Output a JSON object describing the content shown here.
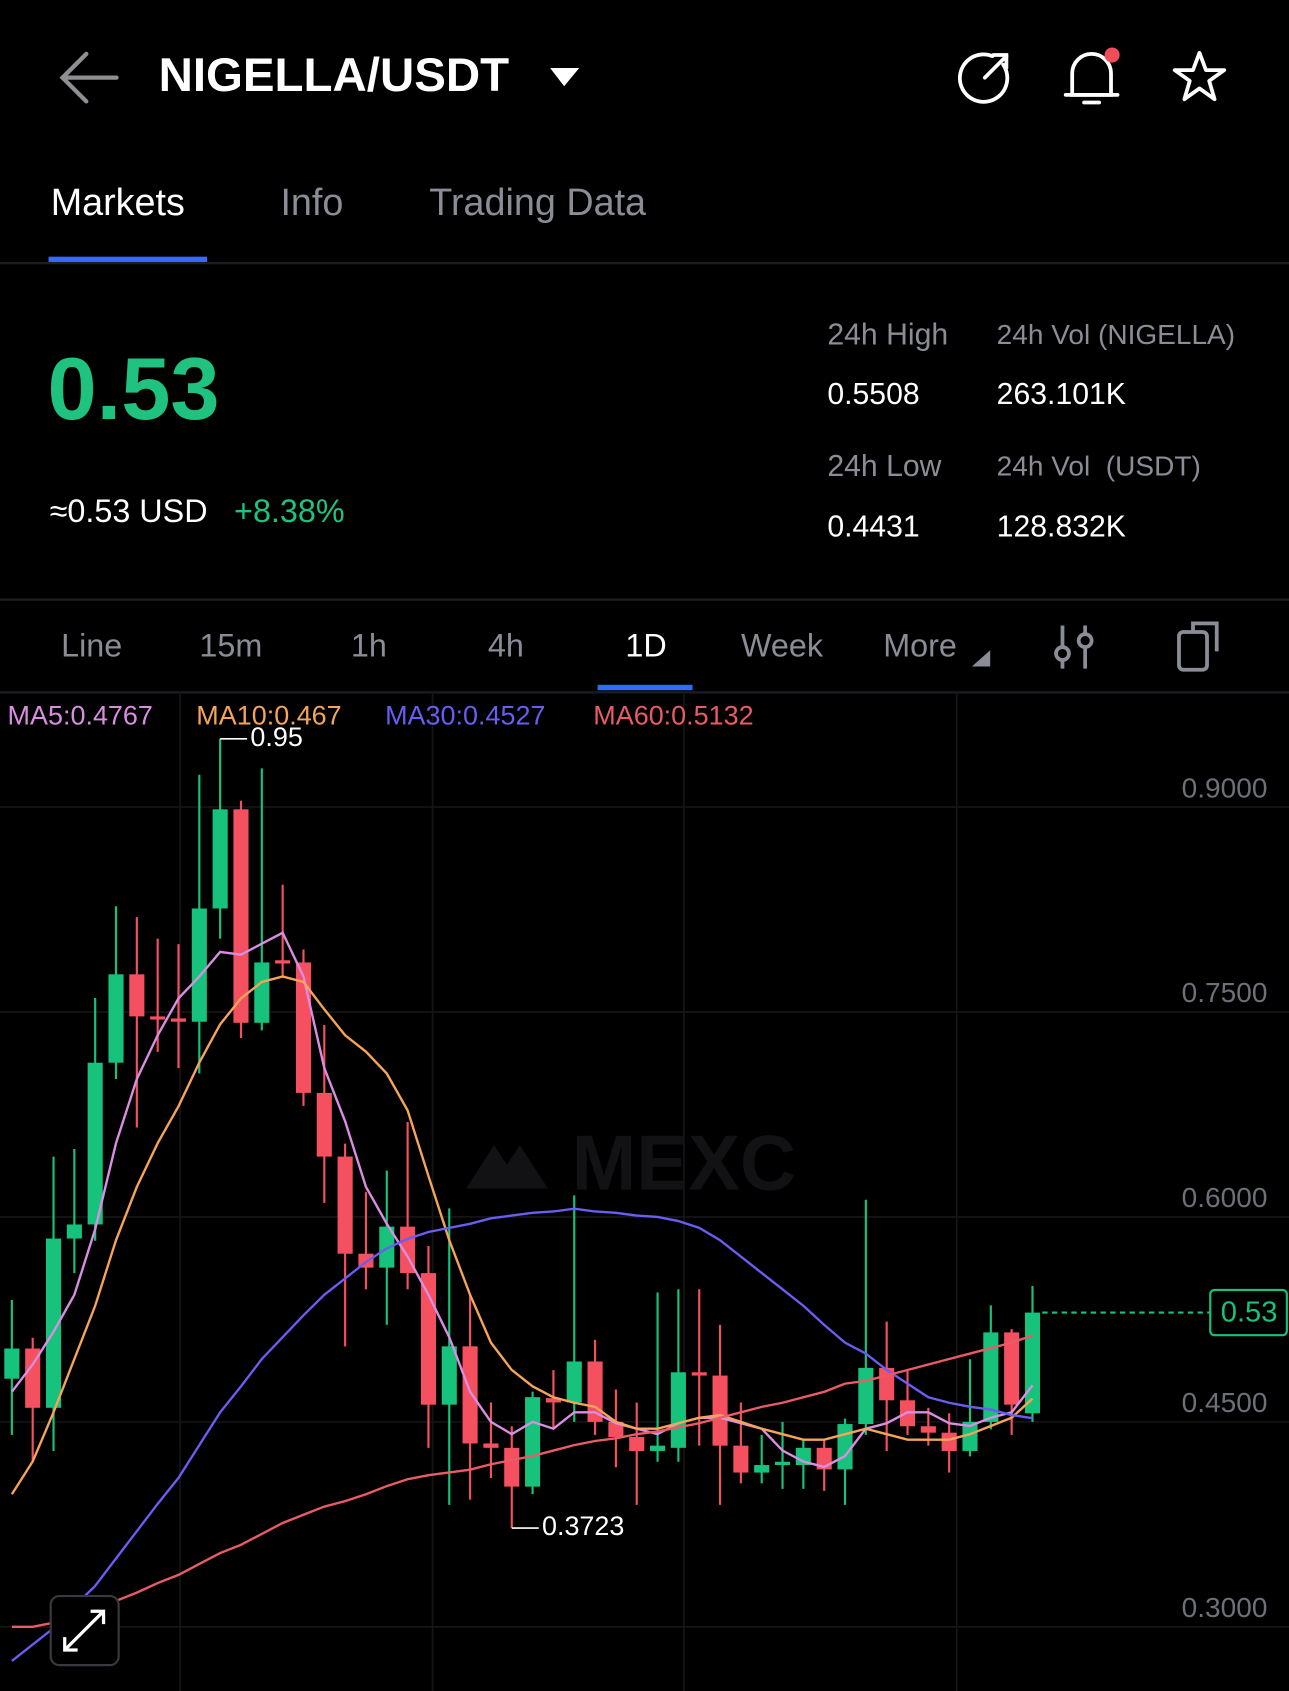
{
  "header": {
    "title": "NIGELLA/USDT",
    "tabs": [
      "Markets",
      "Info",
      "Trading Data"
    ]
  },
  "ticker": {
    "price": "0.53",
    "usd": "≈0.53 USD",
    "change": "+8.38%",
    "stats": [
      {
        "label": "24h High",
        "value": "0.5508"
      },
      {
        "label": "24h Vol (NIGELLA)",
        "value": "263.101K"
      },
      {
        "label": "24h Low",
        "value": "0.4431"
      },
      {
        "label": "24h Vol  (USDT)",
        "value": "128.832K"
      }
    ]
  },
  "intervals": [
    "Line",
    "15m",
    "1h",
    "4h",
    "1D",
    "Week",
    "More"
  ],
  "chart_data": {
    "type": "candlestick",
    "watermark": "MEXC",
    "up_color": "#16c27c",
    "down_color": "#f4505f",
    "ylim": [
      0.253,
      0.984
    ],
    "yticks": [
      {
        "value": 0.9,
        "label": "0.9000"
      },
      {
        "value": 0.75,
        "label": "0.7500"
      },
      {
        "value": 0.6,
        "label": "0.6000"
      },
      {
        "value": 0.45,
        "label": "0.4500"
      },
      {
        "value": 0.3,
        "label": "0.3000"
      }
    ],
    "grid": true,
    "candles": [
      {
        "open": 0.4816,
        "high": 0.5392,
        "low": 0.4405,
        "close": 0.5037
      },
      {
        "open": 0.5037,
        "high": 0.5116,
        "low": 0.4208,
        "close": 0.4603
      },
      {
        "open": 0.4603,
        "high": 0.6442,
        "low": 0.4287,
        "close": 0.5842
      },
      {
        "open": 0.5842,
        "high": 0.6497,
        "low": 0.5589,
        "close": 0.5945
      },
      {
        "open": 0.5945,
        "high": 0.7603,
        "low": 0.5826,
        "close": 0.7129
      },
      {
        "open": 0.7129,
        "high": 0.8274,
        "low": 0.701,
        "close": 0.7776
      },
      {
        "open": 0.7776,
        "high": 0.8195,
        "low": 0.6655,
        "close": 0.7468
      },
      {
        "open": 0.7468,
        "high": 0.8037,
        "low": 0.7208,
        "close": 0.7445
      },
      {
        "open": 0.7453,
        "high": 0.7997,
        "low": 0.7089,
        "close": 0.7429
      },
      {
        "open": 0.7429,
        "high": 0.9237,
        "low": 0.705,
        "close": 0.8258
      },
      {
        "open": 0.8258,
        "high": 0.95,
        "low": 0.8037,
        "close": 0.8984
      },
      {
        "open": 0.8984,
        "high": 0.9047,
        "low": 0.731,
        "close": 0.7421
      },
      {
        "open": 0.7421,
        "high": 0.9284,
        "low": 0.7366,
        "close": 0.7863
      },
      {
        "open": 0.7879,
        "high": 0.8432,
        "low": 0.776,
        "close": 0.7855
      },
      {
        "open": 0.7863,
        "high": 0.7958,
        "low": 0.6813,
        "close": 0.6908
      },
      {
        "open": 0.6908,
        "high": 0.7405,
        "low": 0.6103,
        "close": 0.6442
      },
      {
        "open": 0.6442,
        "high": 0.6537,
        "low": 0.5053,
        "close": 0.5731
      },
      {
        "open": 0.5731,
        "high": 0.6182,
        "low": 0.5471,
        "close": 0.5629
      },
      {
        "open": 0.5629,
        "high": 0.6339,
        "low": 0.521,
        "close": 0.5929
      },
      {
        "open": 0.5929,
        "high": 0.6695,
        "low": 0.5471,
        "close": 0.5589
      },
      {
        "open": 0.5589,
        "high": 0.5787,
        "low": 0.431,
        "close": 0.4626
      },
      {
        "open": 0.4626,
        "high": 0.6063,
        "low": 0.3892,
        "close": 0.5053
      },
      {
        "open": 0.5053,
        "high": 0.5431,
        "low": 0.3931,
        "close": 0.4342
      },
      {
        "open": 0.4342,
        "high": 0.4642,
        "low": 0.4089,
        "close": 0.431
      },
      {
        "open": 0.431,
        "high": 0.4468,
        "low": 0.3723,
        "close": 0.4026
      },
      {
        "open": 0.4026,
        "high": 0.4721,
        "low": 0.3971,
        "close": 0.4681
      },
      {
        "open": 0.4674,
        "high": 0.4879,
        "low": 0.4445,
        "close": 0.4642
      },
      {
        "open": 0.4642,
        "high": 0.6158,
        "low": 0.45,
        "close": 0.4942
      },
      {
        "open": 0.4942,
        "high": 0.51,
        "low": 0.4405,
        "close": 0.45
      },
      {
        "open": 0.45,
        "high": 0.4737,
        "low": 0.4168,
        "close": 0.4389
      },
      {
        "open": 0.4389,
        "high": 0.4642,
        "low": 0.3892,
        "close": 0.4287
      },
      {
        "open": 0.4287,
        "high": 0.5447,
        "low": 0.4208,
        "close": 0.4326
      },
      {
        "open": 0.431,
        "high": 0.5471,
        "low": 0.4208,
        "close": 0.4863
      },
      {
        "open": 0.4863,
        "high": 0.5471,
        "low": 0.4326,
        "close": 0.4839
      },
      {
        "open": 0.4839,
        "high": 0.521,
        "low": 0.3892,
        "close": 0.4326
      },
      {
        "open": 0.4326,
        "high": 0.4642,
        "low": 0.405,
        "close": 0.4129
      },
      {
        "open": 0.4129,
        "high": 0.4405,
        "low": 0.405,
        "close": 0.4184
      },
      {
        "open": 0.4184,
        "high": 0.45,
        "low": 0.401,
        "close": 0.4208
      },
      {
        "open": 0.4184,
        "high": 0.4366,
        "low": 0.401,
        "close": 0.431
      },
      {
        "open": 0.431,
        "high": 0.4366,
        "low": 0.3995,
        "close": 0.4152
      },
      {
        "open": 0.4152,
        "high": 0.4524,
        "low": 0.3892,
        "close": 0.4484
      },
      {
        "open": 0.4484,
        "high": 0.6126,
        "low": 0.4405,
        "close": 0.4895
      },
      {
        "open": 0.4895,
        "high": 0.5234,
        "low": 0.4287,
        "close": 0.4658
      },
      {
        "open": 0.4658,
        "high": 0.4879,
        "low": 0.4405,
        "close": 0.4468
      },
      {
        "open": 0.4468,
        "high": 0.4603,
        "low": 0.4326,
        "close": 0.4421
      },
      {
        "open": 0.4421,
        "high": 0.4563,
        "low": 0.4129,
        "close": 0.4287
      },
      {
        "open": 0.4287,
        "high": 0.4958,
        "low": 0.4247,
        "close": 0.45
      },
      {
        "open": 0.45,
        "high": 0.5353,
        "low": 0.4445,
        "close": 0.5155
      },
      {
        "open": 0.5155,
        "high": 0.5179,
        "low": 0.4405,
        "close": 0.4626
      },
      {
        "open": 0.4563,
        "high": 0.5495,
        "low": 0.45,
        "close": 0.53
      }
    ],
    "series": [
      {
        "name": "MA5:0.4767",
        "color": "#d98ee2",
        "values": [
          0.472,
          0.492,
          0.516,
          0.543,
          0.591,
          0.654,
          0.701,
          0.733,
          0.76,
          0.776,
          0.794,
          0.792,
          0.8,
          0.808,
          0.776,
          0.709,
          0.67,
          0.622,
          0.595,
          0.571,
          0.543,
          0.512,
          0.472,
          0.45,
          0.441,
          0.45,
          0.445,
          0.457,
          0.457,
          0.449,
          0.445,
          0.441,
          0.449,
          0.453,
          0.453,
          0.449,
          0.445,
          0.429,
          0.421,
          0.417,
          0.425,
          0.445,
          0.449,
          0.457,
          0.457,
          0.449,
          0.447,
          0.453,
          0.457,
          0.4767
        ]
      },
      {
        "name": "MA10:0.467",
        "color": "#f5a45a",
        "values": [
          0.397,
          0.421,
          0.457,
          0.496,
          0.535,
          0.583,
          0.622,
          0.654,
          0.681,
          0.713,
          0.741,
          0.76,
          0.772,
          0.776,
          0.772,
          0.752,
          0.733,
          0.721,
          0.705,
          0.678,
          0.63,
          0.583,
          0.543,
          0.508,
          0.488,
          0.476,
          0.468,
          0.464,
          0.461,
          0.45,
          0.445,
          0.445,
          0.449,
          0.453,
          0.455,
          0.45,
          0.445,
          0.441,
          0.437,
          0.437,
          0.441,
          0.445,
          0.441,
          0.437,
          0.437,
          0.437,
          0.441,
          0.447,
          0.453,
          0.467
        ]
      },
      {
        "name": "MA30:0.4527",
        "color": "#6b5cf2",
        "values": [
          0.275,
          0.287,
          0.299,
          0.315,
          0.33,
          0.35,
          0.37,
          0.39,
          0.409,
          0.433,
          0.457,
          0.476,
          0.496,
          0.512,
          0.528,
          0.543,
          0.555,
          0.567,
          0.577,
          0.584,
          0.589,
          0.592,
          0.595,
          0.599,
          0.601,
          0.603,
          0.604,
          0.606,
          0.604,
          0.603,
          0.601,
          0.6,
          0.597,
          0.592,
          0.583,
          0.571,
          0.559,
          0.547,
          0.535,
          0.521,
          0.508,
          0.5,
          0.488,
          0.478,
          0.468,
          0.464,
          0.461,
          0.459,
          0.455,
          0.4527
        ]
      },
      {
        "name": "MA60:0.5132",
        "color": "#e95b65",
        "values": [
          0.3,
          0.3,
          0.303,
          0.307,
          0.313,
          0.319,
          0.325,
          0.332,
          0.338,
          0.346,
          0.354,
          0.36,
          0.368,
          0.376,
          0.382,
          0.388,
          0.392,
          0.397,
          0.403,
          0.408,
          0.411,
          0.413,
          0.415,
          0.419,
          0.422,
          0.425,
          0.429,
          0.433,
          0.436,
          0.438,
          0.441,
          0.443,
          0.446,
          0.449,
          0.453,
          0.457,
          0.461,
          0.464,
          0.468,
          0.472,
          0.478,
          0.48,
          0.484,
          0.488,
          0.492,
          0.496,
          0.5,
          0.504,
          0.508,
          0.5132
        ]
      }
    ]
  }
}
